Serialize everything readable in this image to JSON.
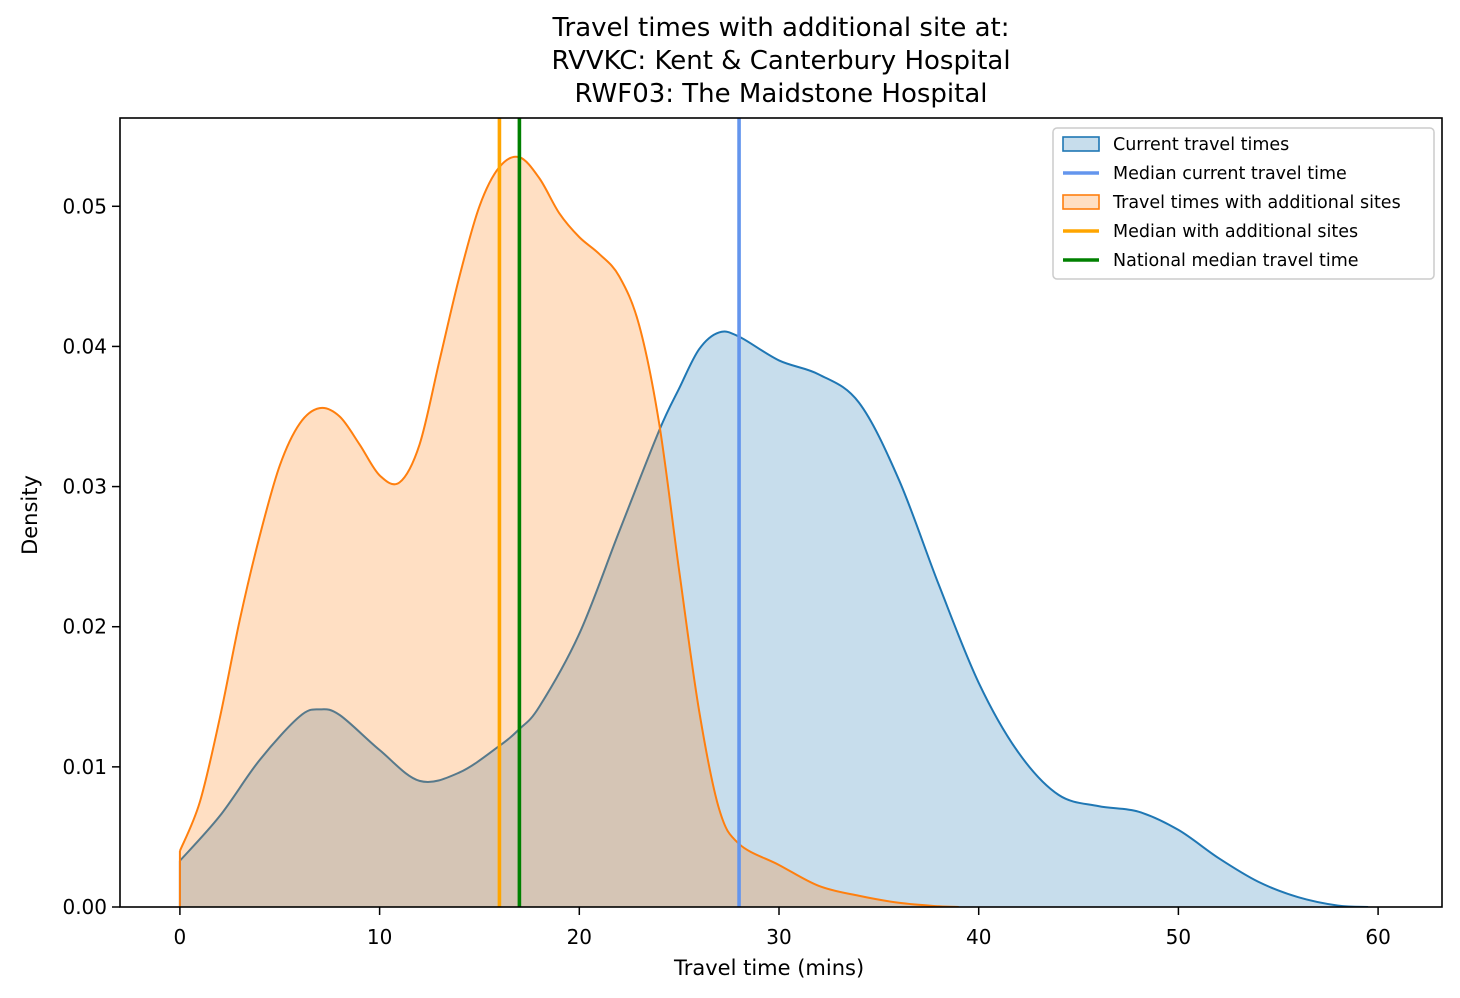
{
  "chart_data": {
    "type": "area",
    "title_lines": [
      "Travel times with additional site at:",
      "RVVKC: Kent & Canterbury Hospital",
      "RWF03: The Maidstone Hospital"
    ],
    "xlabel": "Travel time (mins)",
    "ylabel": "Density",
    "xlim": [
      -3,
      63.2
    ],
    "ylim": [
      0,
      0.0563
    ],
    "xticks": [
      0,
      10,
      20,
      30,
      40,
      50,
      60
    ],
    "xtick_labels": [
      "0",
      "10",
      "20",
      "30",
      "40",
      "50",
      "60"
    ],
    "yticks": [
      0,
      0.01,
      0.02,
      0.03,
      0.04,
      0.05
    ],
    "ytick_labels": [
      "0.00",
      "0.01",
      "0.02",
      "0.03",
      "0.04",
      "0.05"
    ],
    "grid": false,
    "legend_position": "top-right",
    "series": [
      {
        "name": "Current travel times",
        "kind": "density",
        "color": "#1f77b4",
        "fill": "rgba(31,119,180,0.25)",
        "points": [
          [
            0,
            0.0033
          ],
          [
            2,
            0.0065
          ],
          [
            4,
            0.0105
          ],
          [
            6,
            0.0136
          ],
          [
            7,
            0.0141
          ],
          [
            8,
            0.0137
          ],
          [
            10,
            0.0112
          ],
          [
            12,
            0.009
          ],
          [
            14,
            0.0096
          ],
          [
            16,
            0.0115
          ],
          [
            17,
            0.0127
          ],
          [
            18,
            0.0143
          ],
          [
            20,
            0.0195
          ],
          [
            22,
            0.0268
          ],
          [
            24,
            0.034
          ],
          [
            25,
            0.037
          ],
          [
            26,
            0.0398
          ],
          [
            27,
            0.041
          ],
          [
            28,
            0.0407
          ],
          [
            30,
            0.039
          ],
          [
            32,
            0.038
          ],
          [
            34,
            0.036
          ],
          [
            36,
            0.0305
          ],
          [
            38,
            0.023
          ],
          [
            40,
            0.016
          ],
          [
            42,
            0.011
          ],
          [
            44,
            0.008
          ],
          [
            46,
            0.0072
          ],
          [
            48,
            0.0068
          ],
          [
            50,
            0.0055
          ],
          [
            52,
            0.0035
          ],
          [
            54,
            0.0018
          ],
          [
            56,
            0.0007
          ],
          [
            58,
            0.0001
          ],
          [
            59.5,
            0.0
          ]
        ]
      },
      {
        "name": "Travel times with additional sites",
        "kind": "density",
        "color": "#ff7f0e",
        "fill": "rgba(255,127,14,0.25)",
        "points": [
          [
            0,
            0.004
          ],
          [
            1,
            0.0075
          ],
          [
            2,
            0.0135
          ],
          [
            3,
            0.0205
          ],
          [
            4,
            0.0265
          ],
          [
            5,
            0.0315
          ],
          [
            6,
            0.0345
          ],
          [
            7,
            0.0356
          ],
          [
            8,
            0.035
          ],
          [
            9,
            0.033
          ],
          [
            10,
            0.0308
          ],
          [
            11,
            0.0303
          ],
          [
            12,
            0.033
          ],
          [
            13,
            0.039
          ],
          [
            14,
            0.045
          ],
          [
            15,
            0.05
          ],
          [
            16,
            0.0528
          ],
          [
            17,
            0.0535
          ],
          [
            18,
            0.052
          ],
          [
            19,
            0.0495
          ],
          [
            20,
            0.0478
          ],
          [
            21,
            0.0466
          ],
          [
            22,
            0.045
          ],
          [
            23,
            0.0415
          ],
          [
            24,
            0.0345
          ],
          [
            25,
            0.024
          ],
          [
            26,
            0.014
          ],
          [
            27,
            0.007
          ],
          [
            28,
            0.0045
          ],
          [
            30,
            0.003
          ],
          [
            32,
            0.0015
          ],
          [
            34,
            0.0008
          ],
          [
            36,
            0.0003
          ],
          [
            38,
            5e-05
          ],
          [
            39,
            0.0
          ]
        ]
      },
      {
        "name": "Median current travel time",
        "kind": "vline",
        "x": 28,
        "color": "#6495ed"
      },
      {
        "name": "Median with additional sites",
        "kind": "vline",
        "x": 16,
        "color": "#ffa500"
      },
      {
        "name": "National median travel time",
        "kind": "vline",
        "x": 17,
        "color": "#008000"
      }
    ],
    "legend": [
      {
        "label": "Current travel times",
        "kind": "patch",
        "color": "#1f77b4",
        "fill": "rgba(31,119,180,0.25)"
      },
      {
        "label": "Median current travel time",
        "kind": "line",
        "color": "#6495ed"
      },
      {
        "label": "Travel times with additional sites",
        "kind": "patch",
        "color": "#ff7f0e",
        "fill": "rgba(255,127,14,0.25)"
      },
      {
        "label": "Median with additional sites",
        "kind": "line",
        "color": "#ffa500"
      },
      {
        "label": "National median travel time",
        "kind": "line",
        "color": "#008000"
      }
    ]
  }
}
